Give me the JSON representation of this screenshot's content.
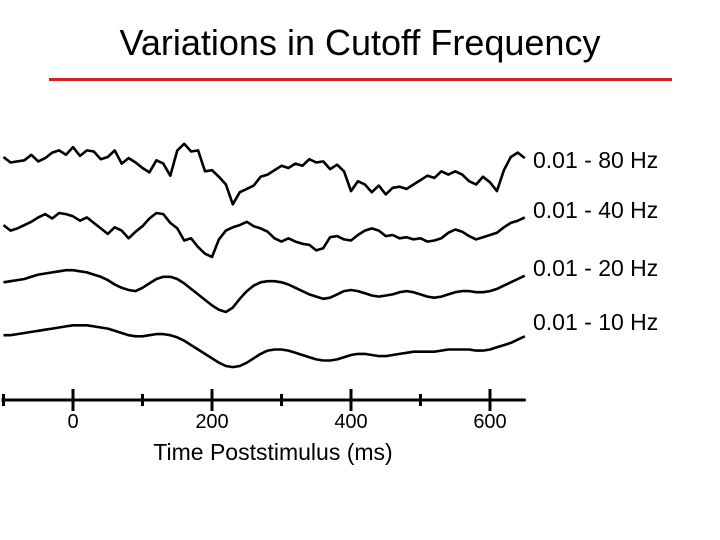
{
  "slide": {
    "title": "Variations in Cutoff Frequency",
    "rule_color": "#d32020"
  },
  "chart_data": {
    "type": "line",
    "title": "",
    "xlabel": "Time Poststimulus (ms)",
    "ylabel": "",
    "xlim": [
      -100,
      650
    ],
    "x_ticks": [
      0,
      200,
      400,
      600
    ],
    "x_tick_labels": [
      "0",
      "200",
      "400",
      "600"
    ],
    "minor_ticks": [
      -100,
      100,
      300,
      500
    ],
    "grid": false,
    "legend": "right (labels beside each trace)",
    "line_color": "#000000",
    "series": [
      {
        "name": "0.01 - 80 Hz",
        "x": [
          -100,
          -90,
          -80,
          -70,
          -60,
          -50,
          -40,
          -30,
          -20,
          -10,
          0,
          10,
          20,
          30,
          40,
          50,
          60,
          70,
          80,
          90,
          100,
          110,
          120,
          130,
          140,
          150,
          160,
          170,
          180,
          190,
          200,
          210,
          220,
          230,
          240,
          250,
          260,
          270,
          280,
          290,
          300,
          310,
          320,
          330,
          340,
          350,
          360,
          370,
          380,
          390,
          400,
          410,
          420,
          430,
          440,
          450,
          460,
          470,
          480,
          490,
          500,
          510,
          520,
          530,
          540,
          550,
          560,
          570,
          580,
          590,
          600,
          610,
          620,
          630,
          640,
          650
        ],
        "y": [
          1.0,
          0.5,
          0.6,
          0.7,
          1.2,
          0.6,
          0.9,
          1.4,
          1.6,
          1.2,
          1.9,
          1.1,
          1.6,
          1.5,
          0.8,
          1.0,
          1.6,
          0.4,
          0.9,
          0.5,
          0.0,
          -0.4,
          0.7,
          0.4,
          -0.7,
          1.6,
          2.2,
          1.5,
          1.6,
          -0.3,
          -0.2,
          -0.8,
          -1.5,
          -3.3,
          -2.2,
          -1.9,
          -1.6,
          -0.8,
          -0.6,
          -0.2,
          0.2,
          0.0,
          0.4,
          0.2,
          0.8,
          0.5,
          0.6,
          -0.1,
          0.3,
          -0.3,
          -2.1,
          -1.2,
          -1.5,
          -2.2,
          -1.6,
          -2.4,
          -1.8,
          -1.7,
          -1.9,
          -1.5,
          -1.1,
          -0.7,
          -0.9,
          -0.3,
          -0.6,
          -0.3,
          -0.6,
          -1.2,
          -1.5,
          -0.8,
          -1.3,
          -2.1,
          -0.2,
          1.0,
          1.4,
          0.9
        ]
      },
      {
        "name": "0.01 - 40 Hz",
        "x": [
          -100,
          -90,
          -80,
          -70,
          -60,
          -50,
          -40,
          -30,
          -20,
          -10,
          0,
          10,
          20,
          30,
          40,
          50,
          60,
          70,
          80,
          90,
          100,
          110,
          120,
          130,
          140,
          150,
          160,
          170,
          180,
          190,
          200,
          210,
          220,
          230,
          240,
          250,
          260,
          270,
          280,
          290,
          300,
          310,
          320,
          330,
          340,
          350,
          360,
          370,
          380,
          390,
          400,
          410,
          420,
          430,
          440,
          450,
          460,
          470,
          480,
          490,
          500,
          510,
          520,
          530,
          540,
          550,
          560,
          570,
          580,
          590,
          600,
          610,
          620,
          630,
          640,
          650
        ],
        "y": [
          -0.1,
          -0.6,
          -0.4,
          -0.1,
          0.2,
          0.6,
          0.9,
          0.5,
          1.0,
          0.9,
          0.7,
          0.3,
          0.6,
          0.1,
          -0.4,
          -0.9,
          -0.3,
          -0.6,
          -1.3,
          -0.7,
          -0.2,
          0.5,
          1.0,
          0.9,
          0.1,
          -0.4,
          -1.5,
          -1.3,
          -2.1,
          -2.7,
          -3.0,
          -1.4,
          -0.6,
          -0.3,
          -0.1,
          0.2,
          -0.2,
          -0.4,
          -0.7,
          -1.3,
          -1.6,
          -1.3,
          -1.6,
          -1.8,
          -1.9,
          -2.4,
          -2.2,
          -1.2,
          -1.1,
          -1.4,
          -1.5,
          -1.0,
          -0.6,
          -0.4,
          -0.6,
          -1.1,
          -1.0,
          -1.3,
          -1.2,
          -1.4,
          -1.3,
          -1.6,
          -1.5,
          -1.3,
          -0.8,
          -0.5,
          -0.7,
          -1.1,
          -1.4,
          -1.2,
          -1.0,
          -0.8,
          -0.3,
          0.1,
          0.3,
          0.6
        ]
      },
      {
        "name": "0.01 - 20 Hz",
        "x": [
          -100,
          -90,
          -80,
          -70,
          -60,
          -50,
          -40,
          -30,
          -20,
          -10,
          0,
          10,
          20,
          30,
          40,
          50,
          60,
          70,
          80,
          90,
          100,
          110,
          120,
          130,
          140,
          150,
          160,
          170,
          180,
          190,
          200,
          210,
          220,
          230,
          240,
          250,
          260,
          270,
          280,
          290,
          300,
          310,
          320,
          330,
          340,
          350,
          360,
          370,
          380,
          390,
          400,
          410,
          420,
          430,
          440,
          450,
          460,
          470,
          480,
          490,
          500,
          510,
          520,
          530,
          540,
          550,
          560,
          570,
          580,
          590,
          600,
          610,
          620,
          630,
          640,
          650
        ],
        "y": [
          -0.3,
          -0.2,
          -0.1,
          0.0,
          0.2,
          0.4,
          0.5,
          0.6,
          0.7,
          0.8,
          0.8,
          0.7,
          0.6,
          0.4,
          0.2,
          -0.1,
          -0.5,
          -0.8,
          -1.0,
          -1.1,
          -0.8,
          -0.4,
          0.0,
          0.2,
          0.2,
          0.0,
          -0.4,
          -0.9,
          -1.4,
          -1.9,
          -2.4,
          -2.8,
          -3.0,
          -2.6,
          -1.8,
          -1.1,
          -0.6,
          -0.3,
          -0.2,
          -0.2,
          -0.3,
          -0.5,
          -0.8,
          -1.1,
          -1.4,
          -1.6,
          -1.8,
          -1.7,
          -1.4,
          -1.1,
          -1.0,
          -1.1,
          -1.3,
          -1.5,
          -1.6,
          -1.5,
          -1.4,
          -1.2,
          -1.1,
          -1.2,
          -1.4,
          -1.6,
          -1.7,
          -1.6,
          -1.4,
          -1.2,
          -1.1,
          -1.1,
          -1.2,
          -1.2,
          -1.1,
          -0.9,
          -0.6,
          -0.3,
          0.0,
          0.3
        ]
      },
      {
        "name": "0.01 - 10 Hz",
        "x": [
          -100,
          -90,
          -80,
          -70,
          -60,
          -50,
          -40,
          -30,
          -20,
          -10,
          0,
          10,
          20,
          30,
          40,
          50,
          60,
          70,
          80,
          90,
          100,
          110,
          120,
          130,
          140,
          150,
          160,
          170,
          180,
          190,
          200,
          210,
          220,
          230,
          240,
          250,
          260,
          270,
          280,
          290,
          300,
          310,
          320,
          330,
          340,
          350,
          360,
          370,
          380,
          390,
          400,
          410,
          420,
          430,
          440,
          450,
          460,
          470,
          480,
          490,
          500,
          510,
          520,
          530,
          540,
          550,
          560,
          570,
          580,
          590,
          600,
          610,
          620,
          630,
          640,
          650
        ],
        "y": [
          -0.2,
          -0.2,
          -0.1,
          0.0,
          0.1,
          0.2,
          0.3,
          0.4,
          0.5,
          0.6,
          0.7,
          0.7,
          0.7,
          0.6,
          0.5,
          0.4,
          0.2,
          0.0,
          -0.2,
          -0.3,
          -0.3,
          -0.2,
          -0.1,
          -0.1,
          -0.2,
          -0.4,
          -0.7,
          -1.1,
          -1.5,
          -1.9,
          -2.3,
          -2.7,
          -3.0,
          -3.1,
          -3.0,
          -2.7,
          -2.3,
          -1.9,
          -1.6,
          -1.5,
          -1.5,
          -1.6,
          -1.8,
          -2.0,
          -2.2,
          -2.4,
          -2.5,
          -2.5,
          -2.4,
          -2.2,
          -2.0,
          -1.9,
          -1.9,
          -2.0,
          -2.1,
          -2.1,
          -2.0,
          -1.9,
          -1.8,
          -1.7,
          -1.7,
          -1.7,
          -1.7,
          -1.6,
          -1.5,
          -1.5,
          -1.5,
          -1.5,
          -1.6,
          -1.6,
          -1.5,
          -1.3,
          -1.1,
          -0.9,
          -0.6,
          -0.3
        ]
      }
    ]
  }
}
